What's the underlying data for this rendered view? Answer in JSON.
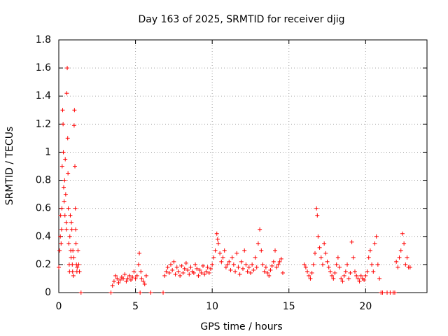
{
  "chart_data": {
    "type": "scatter",
    "title": "Day 163 of 2025, SRMTID for receiver djig",
    "xlabel": "GPS time / hours",
    "ylabel": "SRMTID / TECUs",
    "xlim": [
      0,
      24
    ],
    "ylim": [
      0,
      1.8
    ],
    "x_ticks": [
      0,
      5,
      10,
      15,
      20
    ],
    "x_tick_labels": [
      "0",
      "5",
      "10",
      "15",
      "20"
    ],
    "y_ticks": [
      0,
      0.2,
      0.4,
      0.6,
      0.8,
      1,
      1.2,
      1.4,
      1.6,
      1.8
    ],
    "y_tick_labels": [
      "0",
      "0.2",
      "0.4",
      "0.6",
      "0.8",
      "1",
      "1.2",
      "1.4",
      "1.6",
      "1.8"
    ],
    "grid": true,
    "marker": "+",
    "series": [
      {
        "name": "SRMTID",
        "color": "#ff0000",
        "x": [
          0.0,
          0.05,
          0.1,
          0.12,
          0.15,
          0.18,
          0.2,
          0.22,
          0.25,
          0.28,
          0.3,
          0.32,
          0.35,
          0.38,
          0.4,
          0.42,
          0.45,
          0.48,
          0.5,
          0.52,
          0.55,
          0.58,
          0.6,
          0.62,
          0.65,
          0.68,
          0.7,
          0.72,
          0.75,
          0.78,
          0.8,
          0.82,
          0.85,
          0.88,
          0.9,
          0.92,
          0.95,
          0.98,
          1.0,
          1.02,
          1.05,
          1.08,
          1.1,
          1.12,
          1.15,
          1.18,
          1.2,
          1.25,
          1.3,
          1.35,
          1.45,
          3.4,
          3.5,
          3.6,
          3.7,
          3.8,
          3.9,
          4.0,
          4.1,
          4.2,
          4.3,
          4.4,
          4.5,
          4.6,
          4.7,
          4.8,
          4.9,
          5.0,
          5.1,
          5.2,
          5.25,
          5.3,
          5.35,
          5.4,
          5.5,
          5.6,
          5.7,
          6.0,
          6.8,
          6.9,
          7.0,
          7.1,
          7.2,
          7.3,
          7.4,
          7.5,
          7.6,
          7.7,
          7.8,
          7.9,
          8.0,
          8.1,
          8.2,
          8.3,
          8.4,
          8.5,
          8.6,
          8.7,
          8.8,
          8.9,
          9.0,
          9.1,
          9.2,
          9.3,
          9.4,
          9.5,
          9.6,
          9.7,
          9.8,
          9.9,
          10.0,
          10.1,
          10.2,
          10.3,
          10.35,
          10.4,
          10.5,
          10.6,
          10.7,
          10.8,
          10.9,
          11.0,
          11.1,
          11.2,
          11.3,
          11.4,
          11.5,
          11.6,
          11.7,
          11.8,
          11.9,
          12.0,
          12.1,
          12.2,
          12.3,
          12.4,
          12.5,
          12.6,
          12.7,
          12.8,
          12.9,
          13.0,
          13.1,
          13.2,
          13.3,
          13.4,
          13.5,
          13.6,
          13.7,
          13.8,
          13.9,
          14.0,
          14.1,
          14.2,
          14.3,
          14.4,
          14.5,
          14.6,
          16.0,
          16.1,
          16.2,
          16.3,
          16.4,
          16.5,
          16.6,
          16.7,
          16.8,
          16.85,
          16.9,
          17.0,
          17.1,
          17.2,
          17.3,
          17.4,
          17.5,
          17.6,
          17.7,
          17.8,
          17.9,
          18.0,
          18.1,
          18.2,
          18.3,
          18.4,
          18.5,
          18.6,
          18.7,
          18.8,
          18.9,
          19.0,
          19.1,
          19.2,
          19.3,
          19.4,
          19.5,
          19.6,
          19.7,
          19.8,
          19.9,
          20.0,
          20.1,
          20.2,
          20.3,
          20.4,
          20.5,
          20.6,
          20.7,
          20.8,
          20.9,
          21.0,
          21.1,
          21.4,
          21.6,
          21.8,
          21.9,
          22.0,
          22.1,
          22.2,
          22.3,
          22.4,
          22.5,
          22.6,
          22.7,
          22.8,
          22.9
        ],
        "y": [
          0.18,
          0.3,
          0.4,
          0.55,
          0.35,
          0.45,
          0.6,
          0.9,
          1.3,
          1.2,
          1.0,
          0.75,
          0.65,
          0.8,
          0.55,
          0.95,
          0.7,
          0.5,
          0.45,
          1.42,
          1.6,
          1.1,
          0.85,
          0.6,
          0.35,
          0.2,
          0.15,
          0.4,
          0.55,
          0.3,
          0.25,
          0.5,
          0.45,
          0.2,
          0.15,
          0.3,
          0.12,
          0.25,
          1.19,
          1.3,
          0.9,
          0.6,
          0.45,
          0.35,
          0.2,
          0.15,
          0.18,
          0.3,
          0.2,
          0.15,
          0.0,
          0.0,
          0.05,
          0.08,
          0.12,
          0.1,
          0.07,
          0.09,
          0.11,
          0.1,
          0.13,
          0.08,
          0.1,
          0.12,
          0.09,
          0.11,
          0.15,
          0.1,
          0.12,
          0.2,
          0.28,
          0.0,
          0.15,
          0.1,
          0.08,
          0.06,
          0.12,
          0.0,
          0.0,
          0.12,
          0.15,
          0.18,
          0.14,
          0.2,
          0.16,
          0.22,
          0.13,
          0.18,
          0.15,
          0.12,
          0.19,
          0.14,
          0.17,
          0.21,
          0.16,
          0.13,
          0.18,
          0.15,
          0.14,
          0.2,
          0.17,
          0.12,
          0.16,
          0.14,
          0.19,
          0.13,
          0.15,
          0.18,
          0.14,
          0.17,
          0.2,
          0.25,
          0.3,
          0.42,
          0.38,
          0.35,
          0.28,
          0.22,
          0.25,
          0.3,
          0.18,
          0.2,
          0.22,
          0.16,
          0.25,
          0.2,
          0.15,
          0.28,
          0.18,
          0.13,
          0.22,
          0.17,
          0.3,
          0.2,
          0.15,
          0.18,
          0.14,
          0.2,
          0.16,
          0.25,
          0.18,
          0.35,
          0.45,
          0.3,
          0.2,
          0.15,
          0.18,
          0.14,
          0.12,
          0.16,
          0.19,
          0.22,
          0.3,
          0.18,
          0.2,
          0.22,
          0.24,
          0.14,
          0.2,
          0.18,
          0.15,
          0.12,
          0.1,
          0.14,
          0.2,
          0.28,
          0.6,
          0.55,
          0.4,
          0.32,
          0.25,
          0.2,
          0.35,
          0.28,
          0.22,
          0.18,
          0.15,
          0.12,
          0.1,
          0.14,
          0.2,
          0.25,
          0.18,
          0.1,
          0.08,
          0.12,
          0.15,
          0.2,
          0.1,
          0.14,
          0.36,
          0.25,
          0.15,
          0.12,
          0.1,
          0.08,
          0.12,
          0.1,
          0.09,
          0.12,
          0.15,
          0.25,
          0.3,
          0.2,
          0.15,
          0.35,
          0.4,
          0.2,
          0.1,
          0.0,
          0.0,
          0.0,
          0.0,
          0.0,
          0.0,
          0.22,
          0.18,
          0.25,
          0.3,
          0.42,
          0.35,
          0.2,
          0.25,
          0.18,
          0.18
        ]
      }
    ]
  }
}
